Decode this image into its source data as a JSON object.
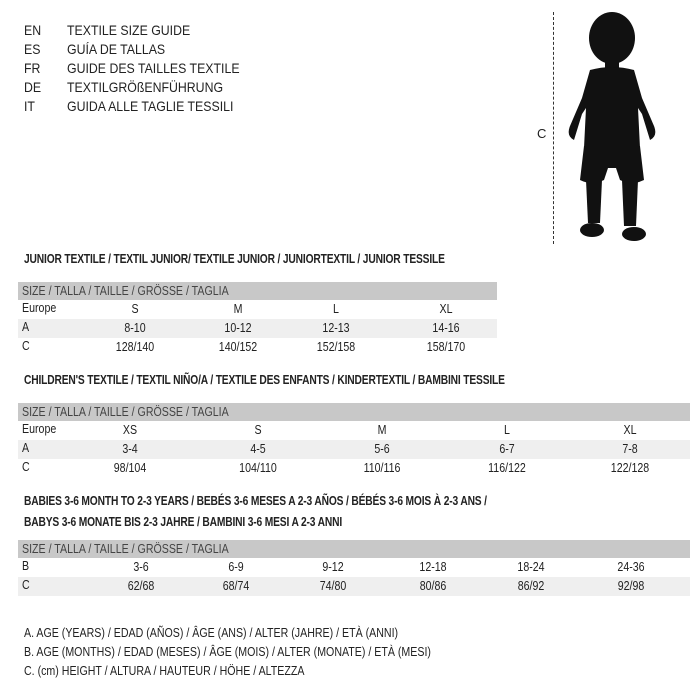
{
  "languages": [
    {
      "code": "EN",
      "title": "TEXTILE SIZE GUIDE"
    },
    {
      "code": "ES",
      "title": "GUÍA DE TALLAS"
    },
    {
      "code": "FR",
      "title": "GUIDE DES TAILLES TEXTILE"
    },
    {
      "code": "DE",
      "title": "TEXTILGRÖßENFÜHRUNG"
    },
    {
      "code": "IT",
      "title": "GUIDA ALLE TAGLIE TESSILI"
    }
  ],
  "figure": {
    "height_label": "C",
    "icon": "child-silhouette"
  },
  "size_header": "SIZE / TALLA / TAILLE / GRÖSSE / TAGLIA",
  "junior": {
    "title": "JUNIOR TEXTILE / TEXTIL JUNIOR/ TEXTILE JUNIOR / JUNIORTEXTIL / JUNIOR TESSILE",
    "rows": [
      {
        "label": "Europe",
        "values": [
          "S",
          "M",
          "L",
          "XL"
        ]
      },
      {
        "label": "A",
        "values": [
          "8-10",
          "10-12",
          "12-13",
          "14-16"
        ]
      },
      {
        "label": "C",
        "values": [
          "128/140",
          "140/152",
          "152/158",
          "158/170"
        ]
      }
    ]
  },
  "children": {
    "title": "CHILDREN'S TEXTILE / TEXTIL NIÑO/A / TEXTILE DES ENFANTS / KINDERTEXTIL / BAMBINI TESSILE",
    "rows": [
      {
        "label": "Europe",
        "values": [
          "XS",
          "S",
          "M",
          "L",
          "XL"
        ]
      },
      {
        "label": "A",
        "values": [
          "3-4",
          "4-5",
          "5-6",
          "6-7",
          "7-8"
        ]
      },
      {
        "label": "C",
        "values": [
          "98/104",
          "104/110",
          "110/116",
          "116/122",
          "122/128"
        ]
      }
    ]
  },
  "babies": {
    "title_line1": "BABIES 3-6 MONTH TO 2-3 YEARS / BEBÉS 3-6 MESES A 2-3 AÑOS / BÉBÉS 3-6 MOIS À 2-3 ANS /",
    "title_line2": "BABYS 3-6 MONATE BIS 2-3 JAHRE / BAMBINI 3-6 MESI A 2-3 ANNI",
    "rows": [
      {
        "label": "B",
        "values": [
          "3-6",
          "6-9",
          "9-12",
          "12-18",
          "18-24",
          "24-36"
        ]
      },
      {
        "label": "C",
        "values": [
          "62/68",
          "68/74",
          "74/80",
          "80/86",
          "86/92",
          "92/98"
        ]
      }
    ]
  },
  "legend": [
    "A. AGE (YEARS) / EDAD (AÑOS) / ÂGE (ANS) / ALTER (JAHRE) / ETÀ (ANNI)",
    "B. AGE (MONTHS) / EDAD (MESES) / ÂGE (MOIS) / ALTER (MONATE) / ETÀ (MESI)",
    "C. (cm) HEIGHT / ALTURA / HAUTEUR / HÖHE / ALTEZZA"
  ]
}
